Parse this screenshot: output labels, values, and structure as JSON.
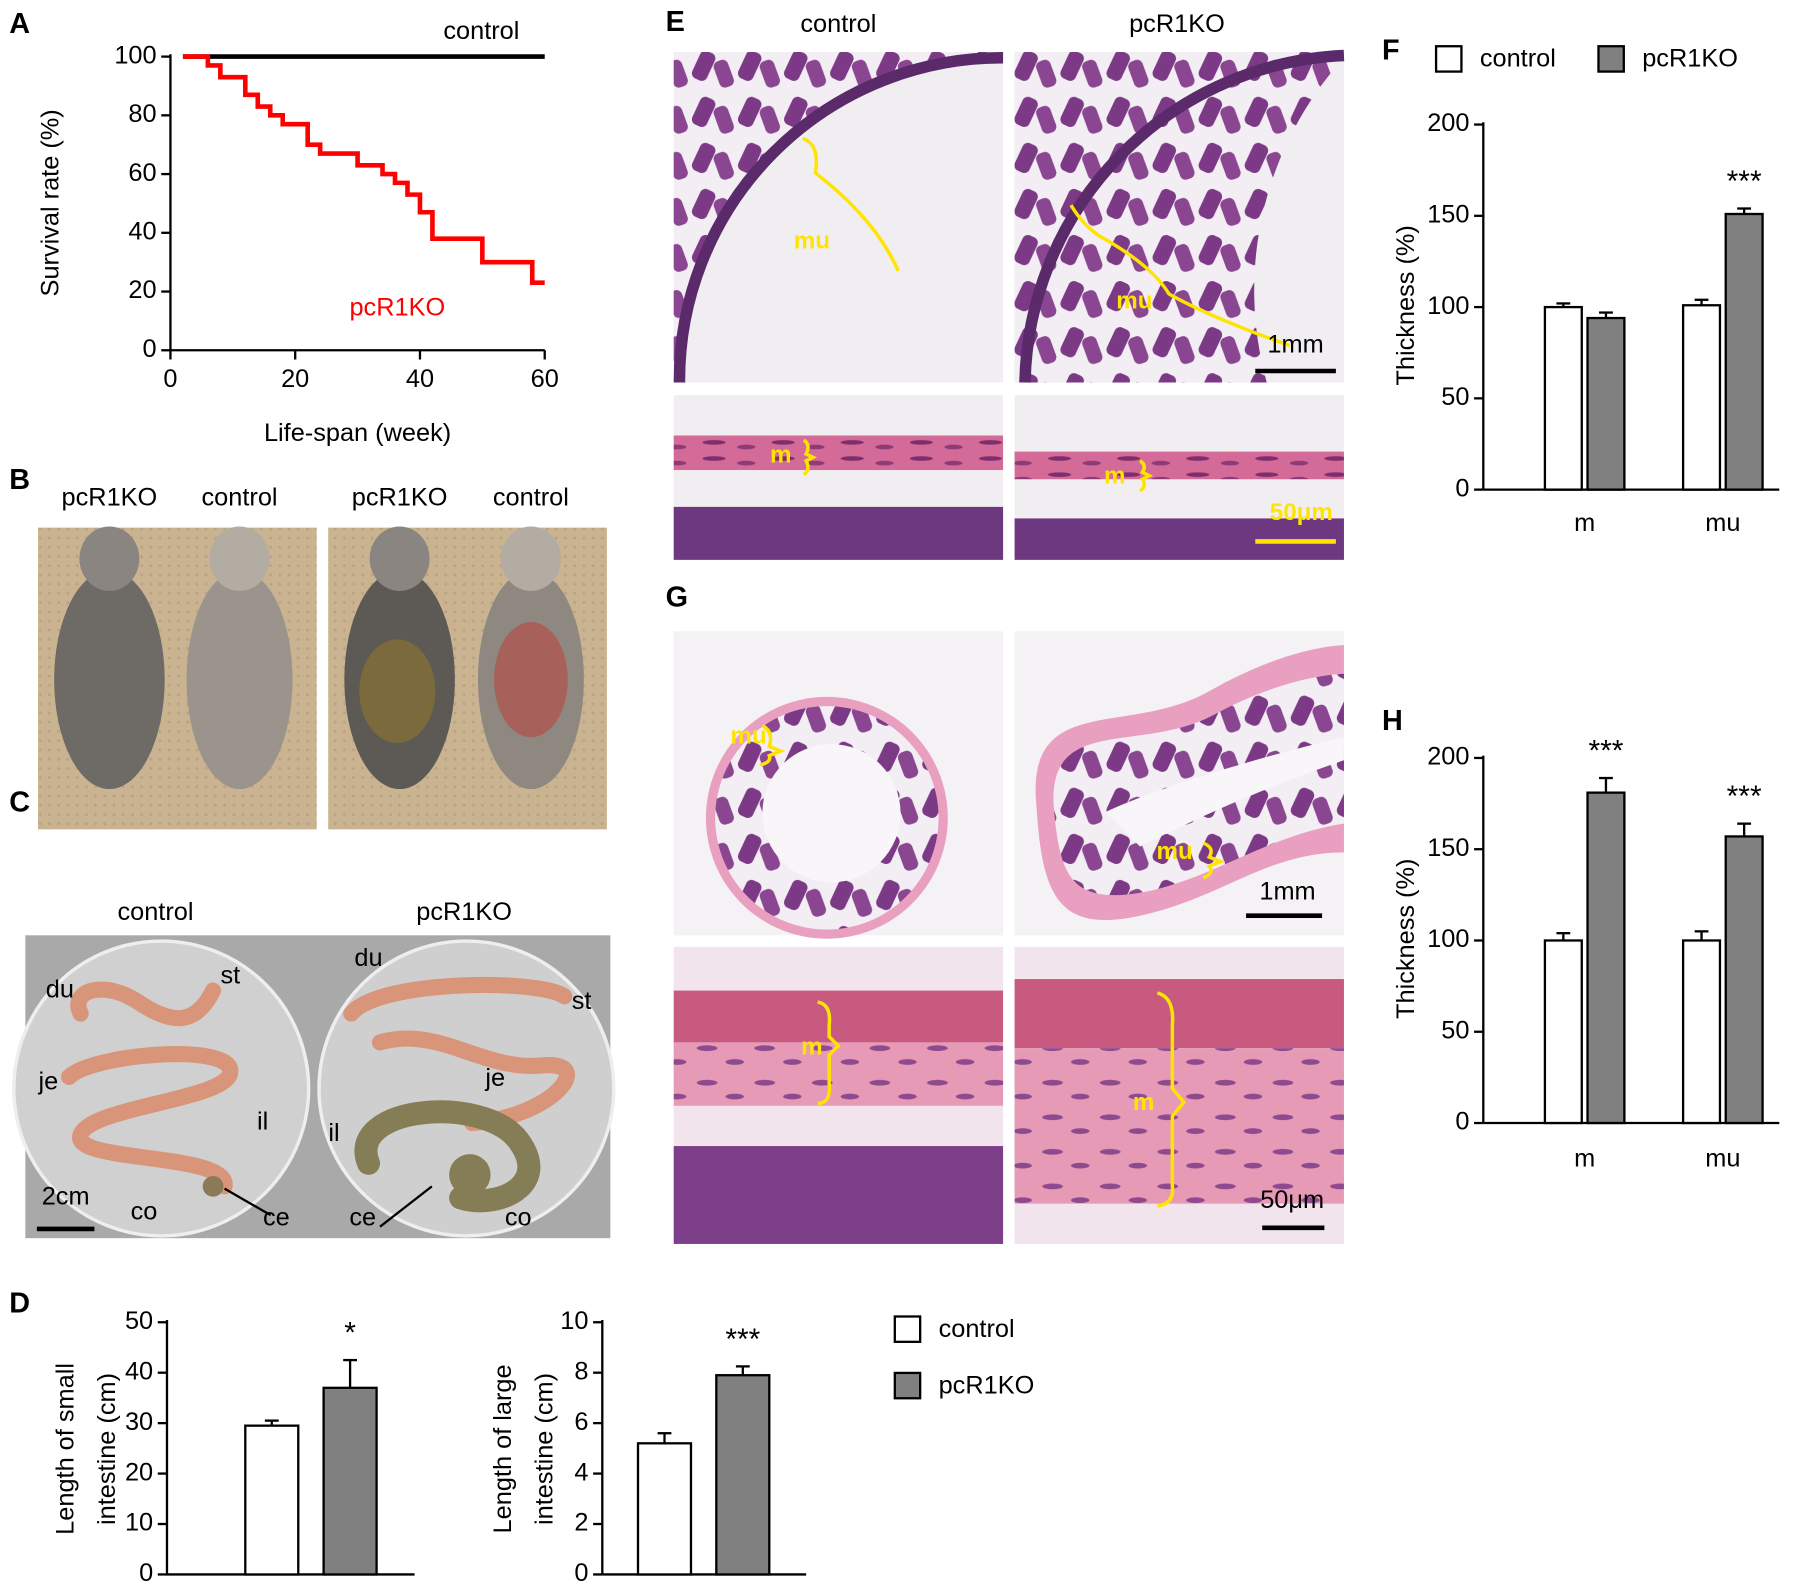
{
  "panel_labels": [
    "A",
    "B",
    "C",
    "D",
    "E",
    "F",
    "G",
    "H"
  ],
  "photos": {
    "B": {
      "labels": [
        "pcR1KO",
        "control",
        "pcR1KO",
        "control"
      ]
    },
    "C": {
      "headers": [
        "control",
        "pcR1KO"
      ],
      "left": [
        "du",
        "st",
        "je",
        "il",
        "co",
        "ce"
      ],
      "right": [
        "du",
        "st",
        "je",
        "il",
        "ce",
        "co"
      ],
      "scale": "2cm"
    },
    "E": {
      "headers": [
        "control",
        "pcR1KO"
      ],
      "marks": [
        "mu",
        "mu",
        "m",
        "m"
      ],
      "scales": [
        "1mm",
        "50μm"
      ]
    },
    "G": {
      "marks": [
        "mu",
        "mu",
        "m",
        "m"
      ],
      "scales": [
        "1mm",
        "50μm"
      ]
    }
  },
  "chart_data": [
    {
      "type": "line",
      "step": true,
      "x_label": "Life-span (week)",
      "y_label": "Survival rate (%)",
      "xlim": [
        0,
        60
      ],
      "xticks": [
        0,
        20,
        40,
        60
      ],
      "ylim": [
        0,
        100
      ],
      "yticks": [
        0,
        20,
        40,
        60,
        80,
        100
      ],
      "series": [
        {
          "name": "control",
          "color": "#000000",
          "x": [
            2,
            60
          ],
          "values": [
            100,
            100
          ]
        },
        {
          "name": "pcR1KO",
          "color": "#ff0000",
          "x": [
            2,
            6,
            8,
            12,
            14,
            16,
            18,
            22,
            24,
            30,
            34,
            36,
            38,
            40,
            42,
            50,
            58,
            60
          ],
          "values": [
            100,
            97,
            93,
            87,
            83,
            80,
            77,
            70,
            67,
            63,
            60,
            57,
            53,
            47,
            38,
            30,
            23,
            23
          ]
        }
      ]
    },
    {
      "type": "bar",
      "y_label": [
        "Length of small",
        "intestine (cm)"
      ],
      "ylim": [
        0,
        50
      ],
      "yticks": [
        0,
        10,
        20,
        30,
        40,
        50
      ],
      "series": [
        {
          "name": "control",
          "color": "#ffffff",
          "values": [
            29.5
          ],
          "errors": [
            1
          ]
        },
        {
          "name": "pcR1KO",
          "color": "#808080",
          "values": [
            37
          ],
          "errors": [
            5.5
          ]
        }
      ],
      "annotations": [
        {
          "text": "*"
        }
      ]
    },
    {
      "type": "bar",
      "y_label": [
        "Length of large",
        "intestine (cm)"
      ],
      "ylim": [
        0,
        10
      ],
      "yticks": [
        0,
        2,
        4,
        6,
        8,
        10
      ],
      "series": [
        {
          "color": "#ffffff",
          "values": [
            5.2
          ],
          "errors": [
            0.4
          ]
        },
        {
          "color": "#808080",
          "values": [
            7.9
          ],
          "errors": [
            0.35
          ]
        }
      ],
      "annotations": [
        {
          "text": "***"
        }
      ]
    },
    {
      "type": "bar",
      "y_label": "Thickness (%)",
      "categories": [
        "m",
        "mu"
      ],
      "ylim": [
        0,
        200
      ],
      "yticks": [
        0,
        50,
        100,
        150,
        200
      ],
      "series": [
        {
          "name": "control",
          "color": "#ffffff",
          "values": [
            100,
            101
          ],
          "errors": [
            2,
            3
          ]
        },
        {
          "name": "pcR1KO",
          "color": "#808080",
          "values": [
            94,
            151
          ],
          "errors": [
            3,
            3
          ]
        }
      ],
      "annotations": [
        {
          "text": "***",
          "category": "mu"
        }
      ]
    },
    {
      "type": "bar",
      "y_label": "Thickness (%)",
      "categories": [
        "m",
        "mu"
      ],
      "ylim": [
        0,
        200
      ],
      "yticks": [
        0,
        50,
        100,
        150,
        200
      ],
      "series": [
        {
          "color": "#ffffff",
          "values": [
            100,
            100
          ],
          "errors": [
            4,
            5
          ]
        },
        {
          "color": "#808080",
          "values": [
            181,
            157
          ],
          "errors": [
            8,
            7
          ]
        }
      ],
      "annotations": [
        {
          "text": "***",
          "category": "m"
        },
        {
          "text": "***",
          "category": "mu"
        }
      ]
    }
  ]
}
